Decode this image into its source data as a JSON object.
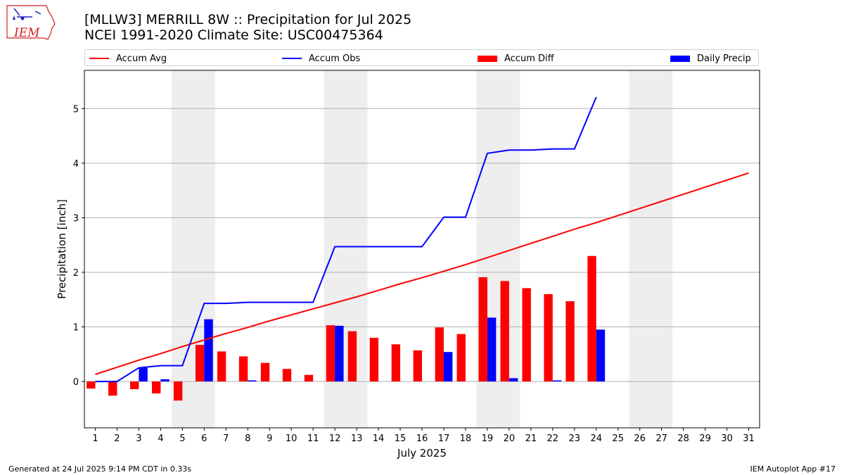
{
  "header": {
    "title": "[MLLW3] MERRILL 8W :: Precipitation for Jul 2025",
    "subtitle": "NCEI 1991-2020 Climate Site: USC00475364"
  },
  "logo": {
    "text": "IEM",
    "icon": "iem-iowa-logo-icon"
  },
  "footer": {
    "generated": "Generated at 24 Jul 2025 9:14 PM CDT in 0.33s",
    "app": "IEM Autoplot App #17"
  },
  "colors": {
    "avg": "#ff0000",
    "obs": "#0000ff",
    "diff": "#ff0000",
    "daily": "#0000ff",
    "weekend": "#eeeeee",
    "grid": "#b0b0b0"
  },
  "chart_data": {
    "type": "bar",
    "xlabel": "July 2025",
    "ylabel": "Precipitation [inch]",
    "xlim": [
      0.5,
      31.5
    ],
    "ylim": [
      -0.85,
      5.7
    ],
    "yticks": [
      0,
      1,
      2,
      3,
      4,
      5
    ],
    "grid": "y",
    "legend_position": "top",
    "legend": [
      {
        "name": "Accum Avg",
        "kind": "line",
        "color": "#ff0000"
      },
      {
        "name": "Accum Obs",
        "kind": "line",
        "color": "#0000ff"
      },
      {
        "name": "Accum Diff",
        "kind": "bar",
        "color": "#ff0000"
      },
      {
        "name": "Daily Precip",
        "kind": "bar",
        "color": "#0000ff"
      }
    ],
    "days": [
      1,
      2,
      3,
      4,
      5,
      6,
      7,
      8,
      9,
      10,
      11,
      12,
      13,
      14,
      15,
      16,
      17,
      18,
      19,
      20,
      21,
      22,
      23,
      24,
      25,
      26,
      27,
      28,
      29,
      30,
      31
    ],
    "weekend_spans": [
      [
        4.5,
        6.5
      ],
      [
        11.5,
        13.5
      ],
      [
        18.5,
        20.5
      ],
      [
        25.5,
        27.5
      ]
    ],
    "series": [
      {
        "name": "Accum Avg",
        "type": "line",
        "color": "#ff0000",
        "x": [
          1,
          2,
          3,
          4,
          5,
          6,
          7,
          8,
          9,
          10,
          11,
          12,
          13,
          14,
          15,
          16,
          17,
          18,
          19,
          20,
          21,
          22,
          23,
          24,
          25,
          26,
          27,
          28,
          29,
          30,
          31
        ],
        "values": [
          0.13,
          0.26,
          0.39,
          0.51,
          0.64,
          0.76,
          0.88,
          0.99,
          1.11,
          1.22,
          1.33,
          1.44,
          1.55,
          1.67,
          1.79,
          1.9,
          2.02,
          2.14,
          2.27,
          2.4,
          2.53,
          2.66,
          2.79,
          2.91,
          3.04,
          3.17,
          3.3,
          3.43,
          3.56,
          3.69,
          3.82
        ]
      },
      {
        "name": "Accum Obs",
        "type": "line",
        "color": "#0000ff",
        "x": [
          1,
          2,
          3,
          4,
          5,
          6,
          7,
          8,
          9,
          10,
          11,
          12,
          13,
          14,
          15,
          16,
          17,
          18,
          19,
          20,
          21,
          22,
          23,
          24
        ],
        "values": [
          0.0,
          0.0,
          0.25,
          0.29,
          0.29,
          1.43,
          1.43,
          1.45,
          1.45,
          1.45,
          1.45,
          2.47,
          2.47,
          2.47,
          2.47,
          2.47,
          3.01,
          3.01,
          4.18,
          4.24,
          4.24,
          4.26,
          4.26,
          5.21
        ]
      },
      {
        "name": "Accum Diff",
        "type": "bar",
        "color": "#ff0000",
        "x": [
          1,
          2,
          3,
          4,
          5,
          6,
          7,
          8,
          9,
          10,
          11,
          12,
          13,
          14,
          15,
          16,
          17,
          18,
          19,
          20,
          21,
          22,
          23,
          24
        ],
        "values": [
          -0.13,
          -0.26,
          -0.14,
          -0.22,
          -0.35,
          0.67,
          0.55,
          0.46,
          0.34,
          0.23,
          0.12,
          1.03,
          0.92,
          0.8,
          0.68,
          0.57,
          0.99,
          0.87,
          1.91,
          1.84,
          1.71,
          1.6,
          1.47,
          2.3
        ]
      },
      {
        "name": "Daily Precip",
        "type": "bar",
        "color": "#0000ff",
        "x": [
          1,
          2,
          3,
          4,
          5,
          6,
          7,
          8,
          9,
          10,
          11,
          12,
          13,
          14,
          15,
          16,
          17,
          18,
          19,
          20,
          21,
          22,
          23,
          24
        ],
        "values": [
          0.0,
          0.0,
          0.25,
          0.04,
          0.0,
          1.14,
          0.0,
          0.02,
          0.0,
          0.0,
          0.0,
          1.02,
          0.0,
          0.0,
          0.0,
          0.0,
          0.54,
          0.0,
          1.17,
          0.06,
          0.0,
          0.02,
          0.0,
          0.95
        ]
      }
    ]
  }
}
